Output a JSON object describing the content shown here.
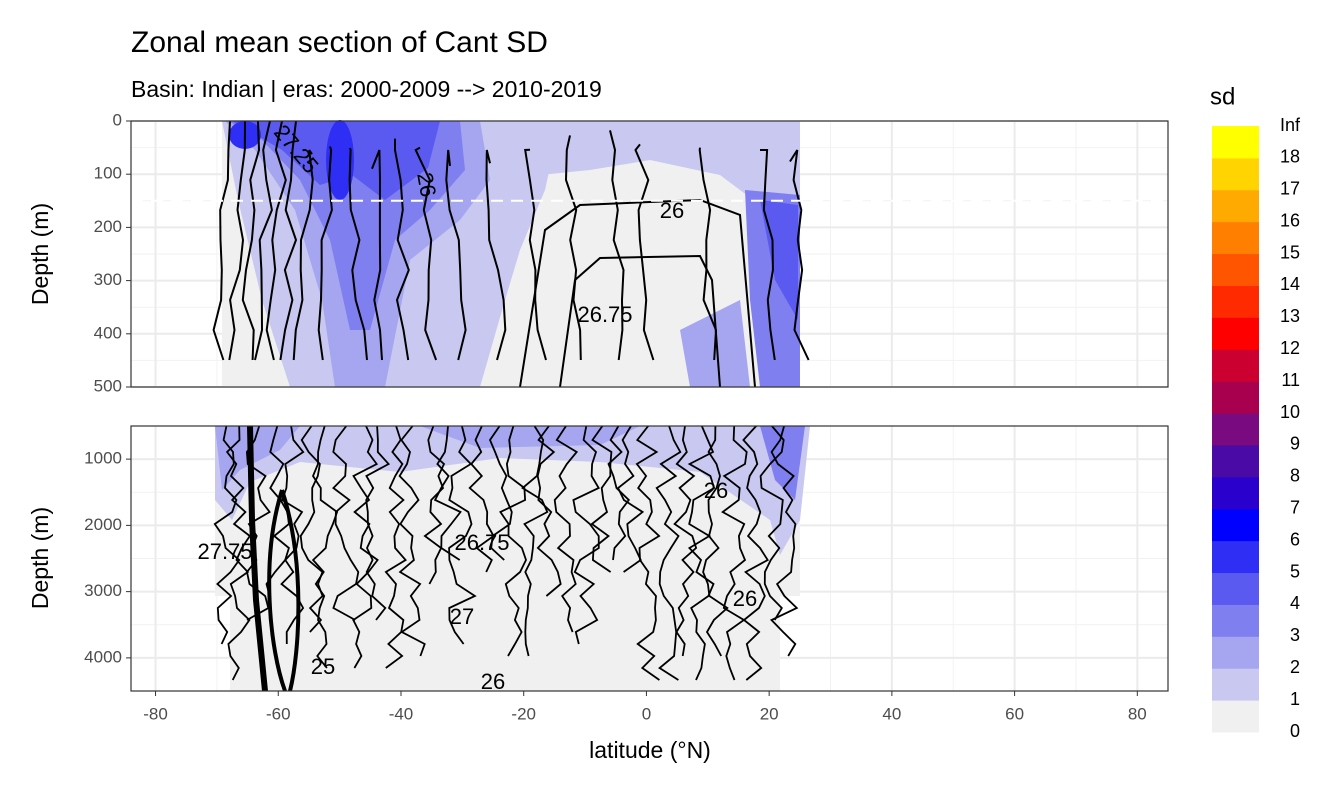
{
  "chart_data": {
    "type": "contour",
    "title": "Zonal mean section of Cant SD",
    "subtitle": "Basin: Indian | eras: 2000-2009 --> 2010-2019",
    "x_label": "latitude (°N)",
    "xlim": [
      -84,
      85
    ],
    "xticks": [
      -80,
      -60,
      -40,
      -20,
      0,
      20,
      40,
      60,
      80
    ],
    "grid": true,
    "panels": [
      {
        "y_label": "Depth (m)",
        "ylim": [
          0,
          500
        ],
        "yticks": [
          0,
          100,
          200,
          300,
          400,
          500
        ],
        "hline": 150,
        "contour_labels": [
          "26",
          "26.75",
          "26",
          "27.25"
        ]
      },
      {
        "y_label": "Depth (m)",
        "ylim": [
          500,
          4500
        ],
        "yticks": [
          1000,
          2000,
          3000,
          4000
        ],
        "contour_labels": [
          "26",
          "25",
          "27",
          "26",
          "27.75",
          "26.75",
          "26"
        ]
      }
    ],
    "legend": {
      "title": "sd",
      "labels": [
        "0",
        "1",
        "2",
        "3",
        "4",
        "5",
        "6",
        "7",
        "8",
        "9",
        "10",
        "11",
        "12",
        "13",
        "14",
        "15",
        "16",
        "17",
        "18",
        "Inf"
      ],
      "colors": [
        "#f0f0f0",
        "#c8c8f0",
        "#a6a6f0",
        "#7f7ff0",
        "#5a5af0",
        "#2e2ef5",
        "#0000ff",
        "#2a00cc",
        "#4a0aa6",
        "#7a0a80",
        "#a8004f",
        "#cc0030",
        "#ff0000",
        "#ff2a00",
        "#ff5500",
        "#ff7f00",
        "#ffaa00",
        "#ffd400",
        "#ffff00"
      ]
    }
  }
}
